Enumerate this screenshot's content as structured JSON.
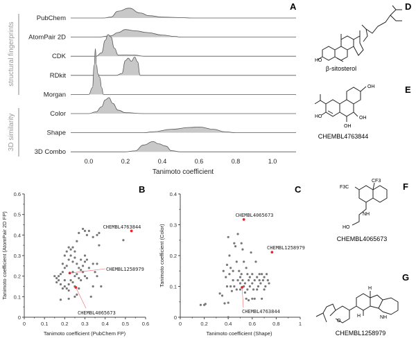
{
  "chart_data": [
    {
      "panel": "A",
      "type": "area",
      "xlabel": "Tanimoto coefficient",
      "xticks": [
        "0.0",
        "0.2",
        "0.4",
        "0.6",
        "0.8",
        "1.0"
      ],
      "xlim": [
        -0.1,
        1.13
      ],
      "groups": [
        {
          "label": "structural fingerprints",
          "rows": [
            "PubChem",
            "AtomPair 2D",
            "CDK",
            "RDkit",
            "Morgan"
          ]
        },
        {
          "label": "3D similarity",
          "rows": [
            "Color",
            "Shape",
            "3D Combo"
          ]
        }
      ],
      "series": [
        {
          "name": "PubChem",
          "density": [
            [
              0.08,
              0
            ],
            [
              0.12,
              0.04
            ],
            [
              0.16,
              0.3
            ],
            [
              0.22,
              0.43
            ],
            [
              0.28,
              0.22
            ],
            [
              0.33,
              0.1
            ],
            [
              0.4,
              0.04
            ],
            [
              0.5,
              0.02
            ],
            [
              0.56,
              0
            ]
          ]
        },
        {
          "name": "AtomPair 2D",
          "density": [
            [
              0.05,
              0
            ],
            [
              0.12,
              0.06
            ],
            [
              0.16,
              0.2
            ],
            [
              0.2,
              0.33
            ],
            [
              0.25,
              0.28
            ],
            [
              0.32,
              0.2
            ],
            [
              0.4,
              0.09
            ],
            [
              0.47,
              0.03
            ],
            [
              0.5,
              0
            ]
          ]
        },
        {
          "name": "CDK",
          "density": [
            [
              0.04,
              0
            ],
            [
              0.07,
              0.15
            ],
            [
              0.09,
              0.7
            ],
            [
              0.105,
              0.95
            ],
            [
              0.12,
              0.85
            ],
            [
              0.14,
              0.35
            ],
            [
              0.16,
              0.05
            ],
            [
              0.2,
              0.06
            ],
            [
              0.25,
              0.05
            ],
            [
              0.3,
              0
            ]
          ]
        },
        {
          "name": "RDkit",
          "density": [
            [
              0.15,
              0
            ],
            [
              0.18,
              0.08
            ],
            [
              0.2,
              0.65
            ],
            [
              0.215,
              0.75
            ],
            [
              0.232,
              0.62
            ],
            [
              0.25,
              0.8
            ],
            [
              0.265,
              0.6
            ],
            [
              0.28,
              0
            ]
          ]
        },
        {
          "name": "Morgan",
          "density": [
            [
              0.0,
              0
            ],
            [
              0.02,
              0.3
            ],
            [
              0.03,
              1.3
            ],
            [
              0.036,
              2.0
            ],
            [
              0.042,
              1.3
            ],
            [
              0.05,
              0.9
            ],
            [
              0.06,
              0.75
            ],
            [
              0.07,
              0.3
            ],
            [
              0.08,
              0
            ]
          ]
        },
        {
          "name": "Color",
          "density": [
            [
              0.0,
              0
            ],
            [
              0.04,
              0.08
            ],
            [
              0.07,
              0.3
            ],
            [
              0.09,
              0.6
            ],
            [
              0.11,
              0.7
            ],
            [
              0.13,
              0.45
            ],
            [
              0.16,
              0.15
            ],
            [
              0.2,
              0.04
            ],
            [
              0.3,
              0
            ]
          ]
        },
        {
          "name": "Shape",
          "density": [
            [
              0.3,
              0
            ],
            [
              0.35,
              0.04
            ],
            [
              0.45,
              0.15
            ],
            [
              0.55,
              0.23
            ],
            [
              0.6,
              0.25
            ],
            [
              0.68,
              0.15
            ],
            [
              0.74,
              0.04
            ],
            [
              0.8,
              0
            ]
          ]
        },
        {
          "name": "3D Combo",
          "density": [
            [
              0.2,
              0
            ],
            [
              0.25,
              0.04
            ],
            [
              0.3,
              0.3
            ],
            [
              0.35,
              0.45
            ],
            [
              0.38,
              0.35
            ],
            [
              0.42,
              0.25
            ],
            [
              0.45,
              0.05
            ],
            [
              0.5,
              0
            ]
          ]
        }
      ]
    },
    {
      "panel": "B",
      "type": "scatter",
      "xlabel": "Tanimoto coefficient (PubChem FP)",
      "ylabel": "Tanimoto coefficient (AtomPair 2D FP)",
      "xlim": [
        0,
        0.6
      ],
      "ylim": [
        0,
        0.6
      ],
      "xticks": [
        "0",
        "0.1",
        "0.2",
        "0.3",
        "0.4",
        "0.5",
        "0.6"
      ],
      "yticks": [
        "0",
        "0.1",
        "0.2",
        "0.3",
        "0.4",
        "0.5",
        "0.6"
      ],
      "points": [
        [
          0.15,
          0.2
        ],
        [
          0.16,
          0.19
        ],
        [
          0.17,
          0.2
        ],
        [
          0.18,
          0.21
        ],
        [
          0.16,
          0.17
        ],
        [
          0.17,
          0.18
        ],
        [
          0.19,
          0.22
        ],
        [
          0.2,
          0.24
        ],
        [
          0.19,
          0.26
        ],
        [
          0.2,
          0.3
        ],
        [
          0.21,
          0.32
        ],
        [
          0.22,
          0.34
        ],
        [
          0.23,
          0.33
        ],
        [
          0.24,
          0.34
        ],
        [
          0.25,
          0.32
        ],
        [
          0.23,
          0.3
        ],
        [
          0.22,
          0.28
        ],
        [
          0.24,
          0.27
        ],
        [
          0.25,
          0.29
        ],
        [
          0.26,
          0.26
        ],
        [
          0.21,
          0.25
        ],
        [
          0.2,
          0.15
        ],
        [
          0.21,
          0.14
        ],
        [
          0.22,
          0.16
        ],
        [
          0.23,
          0.18
        ],
        [
          0.24,
          0.17
        ],
        [
          0.25,
          0.2
        ],
        [
          0.26,
          0.21
        ],
        [
          0.27,
          0.19
        ],
        [
          0.28,
          0.23
        ],
        [
          0.29,
          0.25
        ],
        [
          0.3,
          0.27
        ],
        [
          0.31,
          0.28
        ],
        [
          0.3,
          0.3
        ],
        [
          0.29,
          0.22
        ],
        [
          0.28,
          0.18
        ],
        [
          0.27,
          0.14
        ],
        [
          0.26,
          0.11
        ],
        [
          0.25,
          0.1
        ],
        [
          0.22,
          0.13
        ],
        [
          0.18,
          0.085
        ],
        [
          0.22,
          0.09
        ],
        [
          0.26,
          0.37
        ],
        [
          0.27,
          0.41
        ],
        [
          0.29,
          0.43
        ],
        [
          0.3,
          0.42
        ],
        [
          0.31,
          0.4
        ],
        [
          0.32,
          0.42
        ],
        [
          0.34,
          0.39
        ],
        [
          0.36,
          0.4
        ],
        [
          0.37,
          0.41
        ],
        [
          0.37,
          0.35
        ],
        [
          0.34,
          0.26
        ],
        [
          0.35,
          0.22
        ],
        [
          0.36,
          0.26
        ],
        [
          0.34,
          0.15
        ],
        [
          0.33,
          0.1
        ],
        [
          0.38,
          0.15
        ],
        [
          0.36,
          0.2
        ],
        [
          0.49,
          0.375
        ],
        [
          0.31,
          0.19
        ],
        [
          0.32,
          0.24
        ],
        [
          0.18,
          0.16
        ],
        [
          0.19,
          0.14
        ],
        [
          0.2,
          0.18
        ],
        [
          0.24,
          0.22
        ],
        [
          0.28,
          0.28
        ],
        [
          0.3,
          0.2
        ],
        [
          0.27,
          0.24
        ],
        [
          0.25,
          0.15
        ]
      ],
      "highlights": [
        {
          "label": "CHEMBL4763844",
          "x": 0.53,
          "y": 0.42
        },
        {
          "label": "CHEMBL1258979",
          "x": 0.225,
          "y": 0.215
        },
        {
          "label": "CHEMBL4065673",
          "x": 0.255,
          "y": 0.145
        }
      ]
    },
    {
      "panel": "C",
      "type": "scatter",
      "xlabel": "Tanimoto coefficient (Shape)",
      "ylabel": "Tanimoto coefficient (Color)",
      "xlim": [
        0,
        1
      ],
      "ylim": [
        0,
        0.4
      ],
      "xticks": [
        "0",
        "0.2",
        "0.4",
        "0.6",
        "0.8",
        "1"
      ],
      "yticks": [
        "0",
        "0.1",
        "0.2",
        "0.3",
        "0.4"
      ],
      "points": [
        [
          0.17,
          0.04
        ],
        [
          0.2,
          0.04
        ],
        [
          0.21,
          0.043
        ],
        [
          0.33,
          0.077
        ],
        [
          0.35,
          0.07
        ],
        [
          0.37,
          0.045
        ],
        [
          0.4,
          0.047
        ],
        [
          0.4,
          0.0
        ],
        [
          0.36,
          0.15
        ],
        [
          0.38,
          0.13
        ],
        [
          0.39,
          0.17
        ],
        [
          0.4,
          0.26
        ],
        [
          0.41,
          0.2
        ],
        [
          0.42,
          0.16
        ],
        [
          0.44,
          0.12
        ],
        [
          0.45,
          0.24
        ],
        [
          0.46,
          0.23
        ],
        [
          0.47,
          0.18
        ],
        [
          0.48,
          0.27
        ],
        [
          0.49,
          0.15
        ],
        [
          0.5,
          0.13
        ],
        [
          0.51,
          0.24
        ],
        [
          0.52,
          0.22
        ],
        [
          0.53,
          0.18
        ],
        [
          0.55,
          0.16
        ],
        [
          0.56,
          0.14
        ],
        [
          0.57,
          0.12
        ],
        [
          0.58,
          0.1
        ],
        [
          0.59,
          0.21
        ],
        [
          0.6,
          0.11
        ],
        [
          0.61,
          0.09
        ],
        [
          0.62,
          0.12
        ],
        [
          0.63,
          0.18
        ],
        [
          0.64,
          0.13
        ],
        [
          0.65,
          0.1
        ],
        [
          0.66,
          0.12
        ],
        [
          0.67,
          0.11
        ],
        [
          0.68,
          0.14
        ],
        [
          0.69,
          0.12
        ],
        [
          0.7,
          0.13
        ],
        [
          0.71,
          0.1
        ],
        [
          0.72,
          0.14
        ],
        [
          0.73,
          0.12
        ],
        [
          0.74,
          0.11
        ],
        [
          0.45,
          0.1
        ],
        [
          0.47,
          0.09
        ],
        [
          0.5,
          0.11
        ],
        [
          0.52,
          0.12
        ],
        [
          0.54,
          0.08
        ],
        [
          0.55,
          0.06
        ],
        [
          0.57,
          0.055
        ],
        [
          0.6,
          0.06
        ],
        [
          0.62,
          0.06
        ],
        [
          0.68,
          0.06
        ],
        [
          0.5,
          0.09
        ],
        [
          0.53,
          0.1
        ],
        [
          0.56,
          0.09
        ],
        [
          0.58,
          0.13
        ],
        [
          0.43,
          0.085
        ],
        [
          0.42,
          0.1
        ],
        [
          0.39,
          0.1
        ],
        [
          0.41,
          0.14
        ],
        [
          0.44,
          0.15
        ],
        [
          0.48,
          0.12
        ],
        [
          0.51,
          0.14
        ],
        [
          0.54,
          0.11
        ],
        [
          0.6,
          0.14
        ],
        [
          0.64,
          0.09
        ],
        [
          0.66,
          0.14
        ],
        [
          0.7,
          0.09
        ]
      ],
      "highlights": [
        {
          "label": "CHEMBL4065673",
          "x": 0.53,
          "y": 0.317
        },
        {
          "label": "CHEMBL1258979",
          "x": 0.765,
          "y": 0.211
        },
        {
          "label": "CHEMBL4763844",
          "x": 0.515,
          "y": 0.097
        }
      ]
    }
  ],
  "structures": {
    "D": {
      "letter": "D",
      "name": "β-sitosterol",
      "atoms": [
        "HO",
        "H",
        "H",
        "H",
        "H"
      ]
    },
    "E": {
      "letter": "E",
      "name": "CHEMBL4763844",
      "atoms": [
        "OH",
        "HO",
        "OH",
        "OH",
        "H"
      ]
    },
    "F": {
      "letter": "F",
      "name": "CHEMBL4065673",
      "atoms": [
        "CF3",
        "F3C",
        "N",
        "NH",
        "HO"
      ]
    },
    "G": {
      "letter": "G",
      "name": "CHEMBL1258979",
      "atoms": [
        "H",
        "H",
        "NH",
        "O"
      ]
    }
  },
  "colors": {
    "fill": "#c8c8c8",
    "line": "#555555",
    "point": "#777777",
    "highlight": "#e8262b",
    "group_label": "#999999"
  }
}
